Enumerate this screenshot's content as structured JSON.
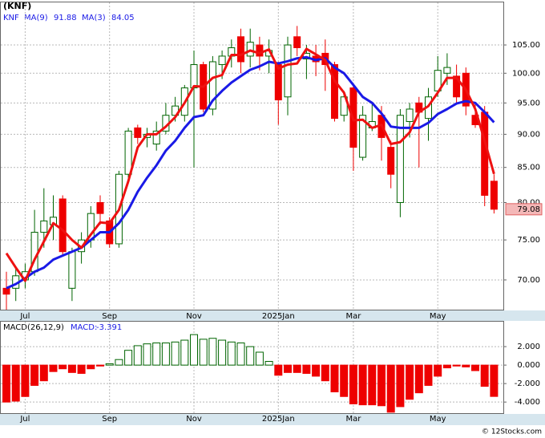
{
  "chart_data": [
    {
      "type": "candlestick",
      "title": "(KNF)",
      "ticker": "KNF",
      "categories": [
        null,
        null,
        "Jul",
        null,
        null,
        null,
        null,
        null,
        null,
        null,
        null,
        "Sep",
        null,
        null,
        null,
        null,
        null,
        null,
        null,
        null,
        "Nov",
        null,
        null,
        null,
        null,
        null,
        null,
        null,
        null,
        "2025Jan",
        null,
        null,
        null,
        null,
        null,
        null,
        null,
        "Mar",
        null,
        null,
        null,
        null,
        null,
        null,
        null,
        null,
        "May",
        null,
        null,
        null,
        null,
        null,
        null
      ],
      "open": [
        69,
        69,
        70,
        71,
        76,
        77,
        80.5,
        69,
        73.5,
        75,
        80,
        77.5,
        74.5,
        84,
        91,
        89.5,
        88.5,
        90.5,
        93,
        93,
        97.5,
        101.5,
        94,
        101.5,
        103,
        106.5,
        103,
        105,
        103,
        101.5,
        96,
        106.5,
        102.5,
        103,
        103.5,
        101.5,
        93,
        97.5,
        86.5,
        91,
        93,
        88,
        80,
        92,
        95,
        92.5,
        97,
        100,
        99.5,
        100,
        93,
        93.5,
        83
      ],
      "high": [
        71,
        71.5,
        72,
        79,
        82,
        81,
        81,
        74,
        76,
        79.5,
        81,
        78,
        84.5,
        91,
        91.5,
        91,
        92,
        95,
        96,
        98,
        104,
        102,
        103,
        104,
        106,
        108,
        108,
        106.5,
        106,
        102,
        106.5,
        108.5,
        105,
        105,
        106,
        102,
        97,
        98,
        94.5,
        95,
        94.5,
        89,
        94,
        95,
        96,
        97.5,
        103,
        103.5,
        101.5,
        101,
        95,
        94.5,
        84
      ],
      "low": [
        66.5,
        67.5,
        69,
        70.5,
        74,
        75,
        73,
        67.5,
        72,
        74,
        77,
        74,
        74,
        83.5,
        88.5,
        88,
        87.5,
        90,
        92,
        92,
        85,
        93.5,
        93,
        99,
        101,
        100,
        101,
        100.5,
        100,
        91.5,
        93,
        103,
        99,
        99.5,
        97,
        92,
        92,
        84.5,
        86,
        90.5,
        86,
        82,
        78,
        89.5,
        85,
        89,
        96,
        98,
        95,
        93,
        91,
        79.5,
        78.5
      ],
      "close": [
        68.3,
        70.5,
        71,
        76,
        77.5,
        78,
        73.5,
        73.5,
        75,
        78.5,
        78.5,
        74.5,
        84,
        90.5,
        89.5,
        90,
        90.5,
        93,
        94.5,
        97.5,
        101.5,
        94,
        102,
        103,
        104.5,
        102,
        105.5,
        103,
        104,
        95.5,
        105,
        104.5,
        103.5,
        102,
        101.5,
        92.5,
        96,
        88,
        93,
        92,
        89.5,
        84,
        93,
        94,
        93.5,
        96,
        100.5,
        101,
        96,
        94.5,
        91.5,
        81,
        79.08
      ],
      "series": [
        {
          "name": "MA(9)",
          "color": "#1a1ae6",
          "values": [
            69,
            69.5,
            70.2,
            71,
            71.5,
            72.5,
            73,
            73.5,
            74,
            75,
            76,
            76,
            77.2,
            79,
            81.5,
            83.5,
            85.3,
            87.5,
            89,
            91,
            92.7,
            93,
            95.4,
            97,
            98.4,
            99.5,
            100.6,
            101.2,
            102,
            101.7,
            102.1,
            102.6,
            102.8,
            102.3,
            102.6,
            101,
            100,
            98,
            96,
            95,
            93.3,
            91.2,
            91,
            91,
            91,
            91.8,
            93.2,
            94,
            94.9,
            95.3,
            95,
            93.5,
            91.88
          ]
        },
        {
          "name": "MA(3)",
          "color": "#ee1111",
          "values": [
            73.3,
            71.5,
            69.9,
            72.5,
            74.8,
            77.2,
            76.3,
            75,
            74,
            75.7,
            77.3,
            77.2,
            79,
            83,
            88,
            90,
            90,
            91.2,
            92.7,
            95,
            97.8,
            97.7,
            99.2,
            99.7,
            103.2,
            103.2,
            104,
            103.5,
            104.2,
            100.8,
            101.5,
            101.7,
            104.3,
            103.3,
            102.3,
            98.7,
            96.7,
            92.2,
            92.3,
            91,
            91.5,
            88.5,
            88.8,
            90.3,
            93.5,
            94.5,
            96.7,
            99.2,
            99.2,
            97.2,
            94,
            89,
            84.05
          ]
        }
      ],
      "up_color": "#006400",
      "down_color": "#ee0000",
      "ylim": [
        66.5,
        113
      ],
      "log_scale": true,
      "grid": true,
      "yticks": [
        {
          "value": 70,
          "label": "70.00"
        },
        {
          "value": 75,
          "label": "75.00"
        },
        {
          "value": 80,
          "label": "80.00"
        },
        {
          "value": 85,
          "label": "85.00"
        },
        {
          "value": 90,
          "label": "90.00"
        },
        {
          "value": 95,
          "label": "95.00"
        },
        {
          "value": 100,
          "label": "100.00"
        },
        {
          "value": 105,
          "label": "105.00"
        }
      ]
    },
    {
      "type": "bar",
      "title": "MACD(26,12,9)",
      "series": [
        {
          "name": "MACD:",
          "values": [
            -4.0,
            -3.9,
            -3.4,
            -2.2,
            -1.7,
            -0.7,
            -0.4,
            -0.8,
            -0.9,
            -0.4,
            -0.1,
            0.15,
            0.6,
            1.6,
            2.1,
            2.3,
            2.4,
            2.4,
            2.5,
            2.7,
            3.3,
            2.8,
            2.9,
            2.7,
            2.5,
            2.4,
            2.0,
            1.4,
            0.4,
            -1.1,
            -0.8,
            -0.8,
            -0.9,
            -1.2,
            -1.7,
            -2.9,
            -3.4,
            -4.2,
            -4.3,
            -4.3,
            -4.4,
            -5.1,
            -4.5,
            -3.7,
            -3.0,
            -2.2,
            -1.2,
            -0.3,
            -0.1,
            -0.2,
            -0.6,
            -2.3,
            -3.391
          ]
        }
      ],
      "up_color": "#006400",
      "down_color": "#ee0000",
      "ylim": [
        -5.2,
        4.7
      ],
      "grid": true,
      "yticks": [
        {
          "value": -4,
          "label": "-4.000"
        },
        {
          "value": -2,
          "label": "-2.000"
        },
        {
          "value": 0,
          "label": "0.000"
        },
        {
          "value": 2,
          "label": "2.000"
        }
      ]
    }
  ],
  "footer": "© 12Stocks.com"
}
